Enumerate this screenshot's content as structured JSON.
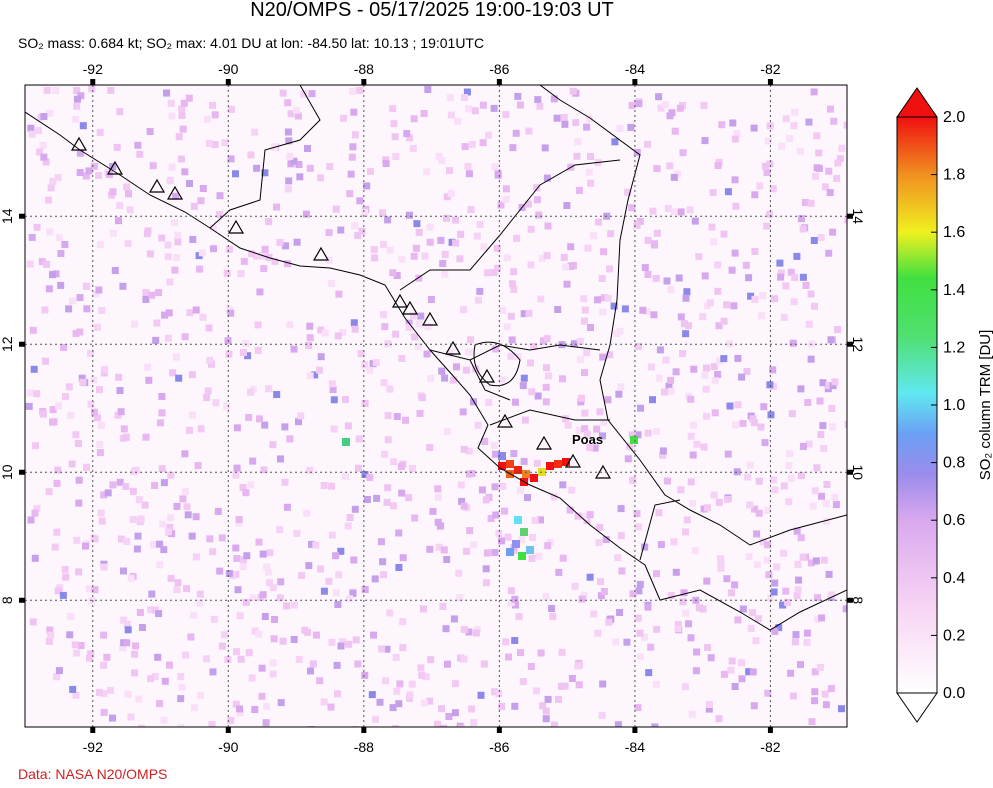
{
  "title": "N20/OMPS - 05/17/2025 19:00-19:03 UT",
  "subtitle": "SO₂ mass: 0.684 kt; SO₂ max: 4.01 DU at lon: -84.50 lat: 10.13 ; 19:01UTC",
  "map": {
    "lon_range": [
      -93,
      -80.87
    ],
    "lat_range": [
      6.02,
      16.05
    ],
    "lon_ticks": [
      -92,
      -90,
      -88,
      -86,
      -84,
      -82
    ],
    "lat_ticks": [
      8,
      10,
      12,
      14
    ],
    "volcano_label": "Poas"
  },
  "colorbar": {
    "label": "SO₂ column TRM [DU]",
    "range": [
      0,
      2
    ],
    "ticks": [
      {
        "value": 0,
        "label": "0.0"
      },
      {
        "value": 0.2,
        "label": "0.2"
      },
      {
        "value": 0.4,
        "label": "0.4"
      },
      {
        "value": 0.6,
        "label": "0.6"
      },
      {
        "value": 0.8,
        "label": "0.8"
      },
      {
        "value": 1,
        "label": "1.0"
      },
      {
        "value": 1.2,
        "label": "1.2"
      },
      {
        "value": 1.4,
        "label": "1.4"
      },
      {
        "value": 1.6,
        "label": "1.6"
      },
      {
        "value": 1.8,
        "label": "1.8"
      },
      {
        "value": 2,
        "label": "2.0"
      }
    ]
  },
  "credit": "Data: NASA N20/OMPS"
}
